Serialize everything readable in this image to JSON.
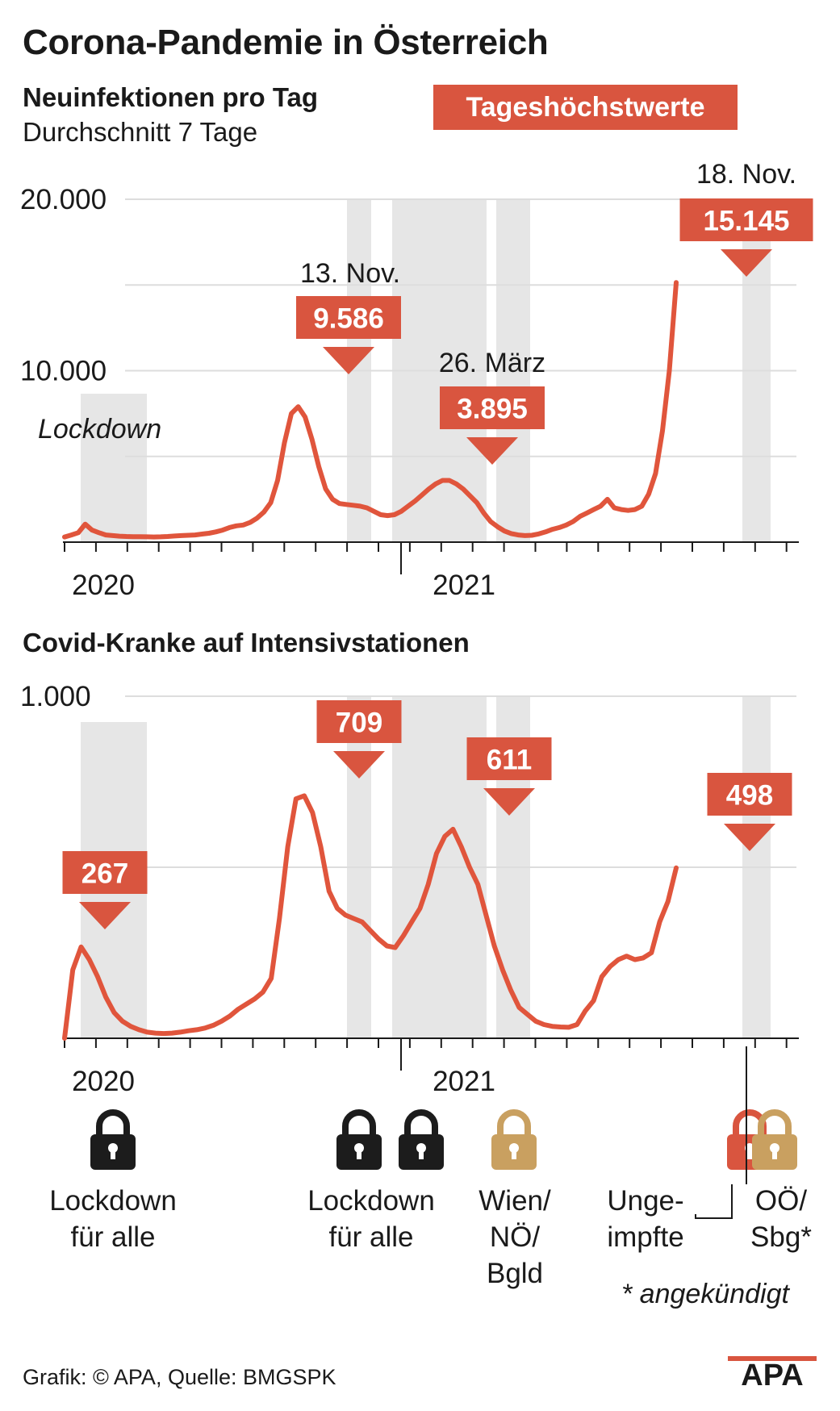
{
  "title": "Corona-Pandemie in Österreich",
  "legend_label": "Tageshöchstwerte",
  "colors": {
    "accent": "#d9553f",
    "line": "#e0553c",
    "shade": "#e6e6e6",
    "grid": "#dddddd",
    "lock_black": "#1c1c1c",
    "lock_gold": "#c9a060"
  },
  "lockdown_text": "Lockdown",
  "chart_data": [
    {
      "type": "line",
      "title": "Neuinfektionen pro Tag",
      "subtitle": "Durchschnitt 7 Tage",
      "ylim": [
        0,
        20000
      ],
      "yticks": [
        "20.000",
        "10.000"
      ],
      "x_labels": [
        "2020",
        "2021"
      ],
      "series": [
        {
          "values": [
            300,
            420,
            550,
            1050,
            700,
            550,
            420,
            380,
            350,
            330,
            320,
            320,
            310,
            300,
            310,
            330,
            360,
            380,
            400,
            420,
            470,
            520,
            600,
            700,
            850,
            950,
            1000,
            1150,
            1400,
            1750,
            2300,
            3600,
            5800,
            7500,
            7900,
            7300,
            6000,
            4400,
            3100,
            2500,
            2250,
            2200,
            2150,
            2100,
            2000,
            1800,
            1600,
            1550,
            1600,
            1800,
            2100,
            2400,
            2750,
            3100,
            3400,
            3600,
            3600,
            3400,
            3100,
            2700,
            2300,
            1700,
            1200,
            900,
            650,
            500,
            420,
            380,
            400,
            480,
            600,
            750,
            850,
            1000,
            1200,
            1500,
            1700,
            1900,
            2100,
            2500,
            2000,
            1900,
            1850,
            1900,
            2100,
            2800,
            4000,
            6500,
            10000,
            15145
          ]
        }
      ],
      "annotations": [
        {
          "date": "13. Nov.",
          "value": "9.586"
        },
        {
          "date": "26. März",
          "value": "3.895"
        },
        {
          "date": "18. Nov.",
          "value": "15.145"
        }
      ]
    },
    {
      "type": "line",
      "title": "Covid-Kranke auf Intensivstationen",
      "ylim": [
        0,
        1000
      ],
      "yticks": [
        "1.000"
      ],
      "x_labels": [
        "2020",
        "2021"
      ],
      "series": [
        {
          "values": [
            0,
            200,
            267,
            230,
            180,
            120,
            75,
            50,
            35,
            25,
            18,
            15,
            14,
            15,
            18,
            22,
            25,
            30,
            38,
            50,
            65,
            85,
            100,
            115,
            135,
            175,
            350,
            560,
            700,
            709,
            660,
            560,
            430,
            380,
            360,
            350,
            340,
            315,
            290,
            270,
            265,
            300,
            340,
            380,
            450,
            540,
            590,
            611,
            560,
            500,
            450,
            360,
            270,
            200,
            140,
            90,
            70,
            50,
            40,
            35,
            33,
            32,
            40,
            80,
            110,
            180,
            210,
            230,
            240,
            230,
            235,
            250,
            340,
            400,
            498
          ]
        }
      ],
      "annotations": [
        {
          "value": "267"
        },
        {
          "value": "709"
        },
        {
          "value": "611"
        },
        {
          "value": "498"
        }
      ]
    }
  ],
  "locks": [
    {
      "label": [
        "Lockdown",
        "für alle"
      ],
      "color": "black"
    },
    {
      "label": [
        "Lockdown",
        "für alle"
      ],
      "color": "black"
    },
    {
      "label": [
        "Wien/",
        "NÖ/",
        "Bgld"
      ],
      "color": "gold"
    },
    {
      "label": [
        "Unge-",
        "impfte"
      ],
      "color": "red"
    },
    {
      "label": [
        "OÖ/",
        "Sbg*"
      ],
      "color": "gold"
    }
  ],
  "footnote": "* angekündigt",
  "source": "Grafik: © APA, Quelle: BMGSPK",
  "logo_text": "APA"
}
